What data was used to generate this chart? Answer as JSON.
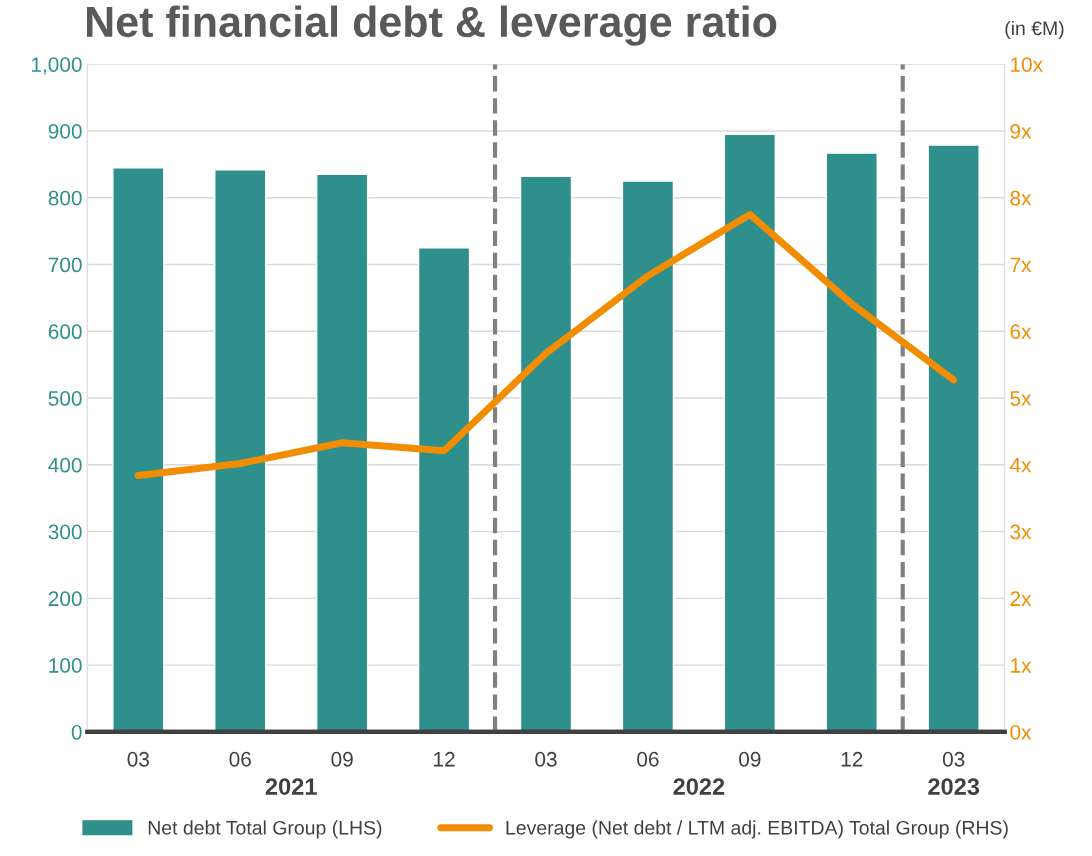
{
  "chart_data": {
    "type": "bar",
    "title": "Net financial debt & leverage ratio",
    "categories": [
      "03",
      "06",
      "09",
      "12",
      "03",
      "06",
      "09",
      "12",
      "03"
    ],
    "series": [
      {
        "name": "Net debt Total Group (LHS)",
        "color": "#2e8f8c",
        "values": [
          845,
          842,
          835,
          725,
          832,
          825,
          895,
          867,
          879
        ]
      },
      {
        "name": "Leverage (Net debt / LTM adj. EBITDA) Total Group (RHS)",
        "type": "line",
        "axis": "y2",
        "color": "#f28c00",
        "line_style": "solid",
        "values": [
          3.84,
          4.02,
          4.33,
          4.21,
          5.67,
          6.83,
          7.75,
          6.41,
          5.27
        ]
      }
    ],
    "ylim": [
      0,
      1000
    ],
    "yticks": [
      {
        "value": 0,
        "label": "0"
      },
      {
        "value": 100,
        "label": "100"
      },
      {
        "value": 200,
        "label": "200"
      },
      {
        "value": 300,
        "label": "300"
      },
      {
        "value": 400,
        "label": "400"
      },
      {
        "value": 500,
        "label": "500"
      },
      {
        "value": 600,
        "label": "600"
      },
      {
        "value": 700,
        "label": "700"
      },
      {
        "value": 800,
        "label": "800"
      },
      {
        "value": 900,
        "label": "900"
      },
      {
        "value": 1000,
        "label": "1,000"
      }
    ],
    "y2lim": [
      0,
      10
    ],
    "y2ticks": [
      {
        "value": 0,
        "label": "0x"
      },
      {
        "value": 1,
        "label": "1x"
      },
      {
        "value": 2,
        "label": "2x"
      },
      {
        "value": 3,
        "label": "3x"
      },
      {
        "value": 4,
        "label": "4x"
      },
      {
        "value": 5,
        "label": "5x"
      },
      {
        "value": 6,
        "label": "6x"
      },
      {
        "value": 7,
        "label": "7x"
      },
      {
        "value": 8,
        "label": "8x"
      },
      {
        "value": 9,
        "label": "9x"
      },
      {
        "value": 10,
        "label": "10x"
      }
    ],
    "annotations": [
      "(in €M)",
      "2021",
      "2022",
      "2023"
    ],
    "grid": "y",
    "legend": "bottom",
    "marker": "none"
  }
}
